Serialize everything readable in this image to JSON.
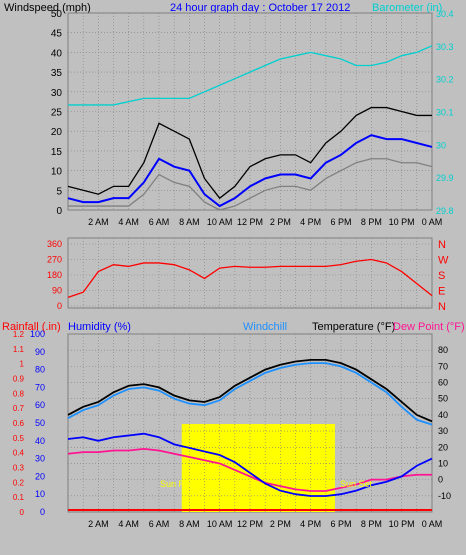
{
  "colors": {
    "bg": "#c0c0c0",
    "plot": "#c0c0c0",
    "grid": "#808080",
    "wind_gust": "#000000",
    "wind_avg": "#0000ff",
    "wind_min": "#808080",
    "barometer": "#00d0d0",
    "direction": "#ff0000",
    "humidity": "#0000ff",
    "rainfall": "#ff0000",
    "windchill": "#1e90ff",
    "temperature": "#000000",
    "dewpoint": "#ff1493",
    "sun": "#ffff00",
    "title": "#0000ff"
  },
  "chart_data": [
    {
      "type": "line",
      "title": "24 hour graph day : October 17 2012",
      "ylabel": "Windspeed (mph)",
      "y2label": "Barometer (in)",
      "ylim": [
        0,
        50
      ],
      "y2lim": [
        29.8,
        30.4
      ],
      "yticks": [
        "0",
        "5",
        "10",
        "15",
        "20",
        "25",
        "30",
        "35",
        "40",
        "45",
        "50"
      ],
      "y2ticks": [
        "29.8",
        "29.9",
        "30",
        "30.1",
        "30.2",
        "30.3",
        "30.4"
      ],
      "xlabels": [
        "2 AM",
        "4 AM",
        "6 AM",
        "8 AM",
        "10 AM",
        "12 PM",
        "2 PM",
        "4 PM",
        "6 PM",
        "8 PM",
        "10 PM",
        "0 AM"
      ],
      "x": [
        0,
        1,
        2,
        3,
        4,
        5,
        6,
        7,
        8,
        9,
        10,
        11,
        12,
        13,
        14,
        15,
        16,
        17,
        18,
        19,
        20,
        21,
        22,
        23,
        24
      ],
      "series": [
        {
          "key": "gust",
          "values": [
            6,
            5,
            4,
            6,
            6,
            12,
            22,
            20,
            18,
            8,
            3,
            6,
            11,
            13,
            14,
            14,
            12,
            17,
            20,
            24,
            26,
            26,
            25,
            24,
            24
          ]
        },
        {
          "key": "average",
          "values": [
            3,
            2,
            2,
            3,
            3,
            7,
            13,
            11,
            10,
            4,
            1,
            3,
            6,
            8,
            9,
            9,
            8,
            12,
            14,
            17,
            19,
            18,
            18,
            17,
            16
          ]
        },
        {
          "key": "minimum",
          "values": [
            1,
            1,
            1,
            1,
            1,
            4,
            9,
            7,
            6,
            2,
            0,
            1,
            3,
            5,
            6,
            6,
            5,
            8,
            10,
            12,
            13,
            13,
            12,
            12,
            11
          ]
        },
        {
          "key": "barometer",
          "values": [
            30.12,
            30.12,
            30.12,
            30.12,
            30.13,
            30.14,
            30.14,
            30.14,
            30.14,
            30.16,
            30.18,
            30.2,
            30.22,
            30.24,
            30.26,
            30.27,
            30.28,
            30.27,
            30.26,
            30.24,
            30.24,
            30.25,
            30.27,
            30.28,
            30.3
          ]
        }
      ]
    },
    {
      "type": "line",
      "ylabel_ticks": [
        "0",
        "90",
        "180",
        "270",
        "360"
      ],
      "y2letters": [
        "N",
        "W",
        "S",
        "E",
        "N"
      ],
      "ylim": [
        0,
        360
      ],
      "x": [
        0,
        1,
        2,
        3,
        4,
        5,
        6,
        7,
        8,
        9,
        10,
        11,
        12,
        13,
        14,
        15,
        16,
        17,
        18,
        19,
        20,
        21,
        22,
        23,
        24
      ],
      "series": [
        {
          "key": "direction",
          "values": [
            50,
            80,
            200,
            240,
            230,
            250,
            250,
            240,
            210,
            160,
            220,
            230,
            225,
            225,
            230,
            230,
            230,
            230,
            240,
            260,
            270,
            250,
            200,
            130,
            60
          ]
        }
      ]
    },
    {
      "type": "line",
      "left_label_1": "Rainfall (.in)",
      "left_label_2": "Humidity (%)",
      "windchill_label": "Windchill",
      "temp_label": "Temperature (°F)",
      "dew_label": "Dew Point (°F)",
      "sunrise_label": "Sun Rise",
      "sunset_label": "Sun Set",
      "rain_ticks": [
        "0",
        "0.1",
        "0.2",
        "0.3",
        "0.4",
        "0.5",
        "0.6",
        "0.7",
        "0.8",
        "0.9",
        "1",
        "1.1",
        "1.2"
      ],
      "hum_ticks": [
        "0",
        "10",
        "20",
        "30",
        "40",
        "50",
        "60",
        "70",
        "80",
        "90",
        "100"
      ],
      "temp_ticks": [
        "-10",
        "0",
        "10",
        "20",
        "30",
        "40",
        "50",
        "60",
        "70",
        "80"
      ],
      "ylim_temp": [
        -20,
        90
      ],
      "ylim_hum": [
        0,
        100
      ],
      "xlabels": [
        "2 AM",
        "4 AM",
        "6 AM",
        "8 AM",
        "10 AM",
        "12 PM",
        "2 PM",
        "4 PM",
        "6 PM",
        "8 PM",
        "10 PM",
        "0 AM"
      ],
      "x": [
        0,
        1,
        2,
        3,
        4,
        5,
        6,
        7,
        8,
        9,
        10,
        11,
        12,
        13,
        14,
        15,
        16,
        17,
        18,
        19,
        20,
        21,
        22,
        23,
        24
      ],
      "series": [
        {
          "key": "temperature",
          "values": [
            40,
            45,
            48,
            54,
            58,
            59,
            57,
            52,
            49,
            48,
            51,
            58,
            63,
            68,
            71,
            73,
            74,
            74,
            72,
            68,
            62,
            56,
            48,
            40,
            36
          ]
        },
        {
          "key": "windchill",
          "values": [
            38,
            43,
            46,
            52,
            56,
            57,
            55,
            50,
            47,
            46,
            49,
            56,
            61,
            66,
            69,
            71,
            72,
            72,
            70,
            66,
            60,
            54,
            45,
            37,
            34
          ]
        },
        {
          "key": "dewpoint",
          "values": [
            16,
            17,
            17,
            18,
            18,
            19,
            18,
            16,
            14,
            12,
            10,
            6,
            2,
            -2,
            -4,
            -6,
            -7,
            -7,
            -5,
            -3,
            0,
            0,
            2,
            3,
            3
          ]
        },
        {
          "key": "humidity",
          "values": [
            41,
            42,
            40,
            42,
            43,
            44,
            42,
            38,
            36,
            34,
            32,
            28,
            22,
            16,
            12,
            10,
            9,
            9,
            10,
            12,
            15,
            17,
            20,
            26,
            30
          ]
        },
        {
          "key": "rainfall",
          "values": [
            0,
            0,
            0,
            0,
            0,
            0,
            0,
            0,
            0,
            0,
            0,
            0,
            0,
            0,
            0,
            0,
            0,
            0,
            0,
            0,
            0,
            0,
            0,
            0,
            0
          ]
        }
      ],
      "sun": {
        "rise_hour": 7.5,
        "set_hour": 17.6
      }
    }
  ]
}
